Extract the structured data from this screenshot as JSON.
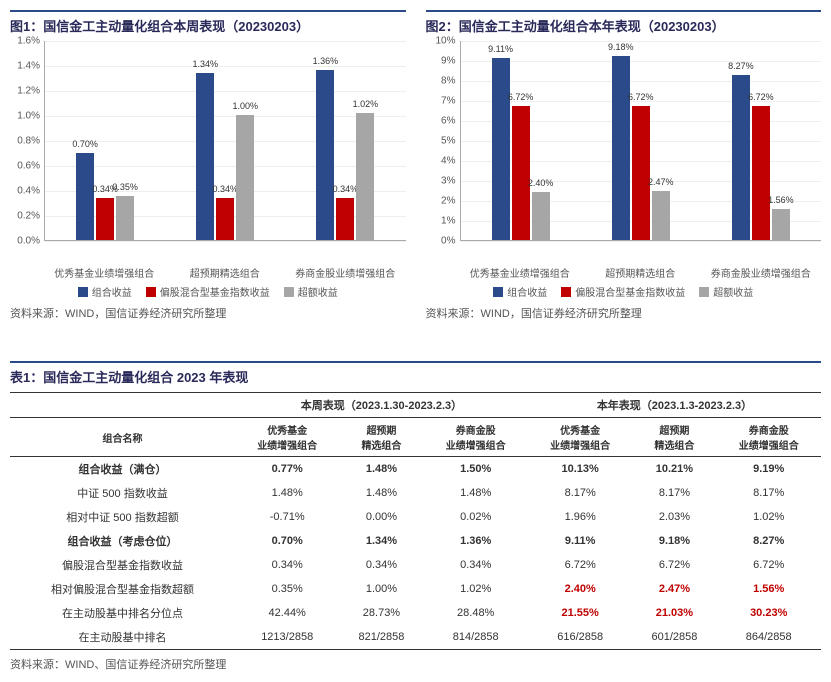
{
  "chart1": {
    "title": "图1：国信金工主动量化组合本周表现（20230203）",
    "type": "bar",
    "ylim": [
      0,
      1.6
    ],
    "ytick_step": 0.2,
    "y_suffix": "%",
    "categories": [
      "优秀基金业绩增强组合",
      "超预期精选组合",
      "券商金股业绩增强组合"
    ],
    "series": [
      {
        "name": "组合收益",
        "color": "#2a4a8a",
        "values": [
          0.7,
          1.34,
          1.36
        ],
        "labels": [
          "0.70%",
          "1.34%",
          "1.36%"
        ]
      },
      {
        "name": "偏股混合型基金指数收益",
        "color": "#c00000",
        "values": [
          0.34,
          0.34,
          0.34
        ],
        "labels": [
          "0.34%",
          "0.34%",
          "0.34%"
        ]
      },
      {
        "name": "超额收益",
        "color": "#a6a6a6",
        "values": [
          0.35,
          1.0,
          1.02
        ],
        "labels": [
          "0.35%",
          "1.00%",
          "1.02%"
        ]
      }
    ],
    "source": "资料来源：WIND，国信证券经济研究所整理"
  },
  "chart2": {
    "title": "图2：国信金工主动量化组合本年表现（20230203）",
    "type": "bar",
    "ylim": [
      0,
      10
    ],
    "ytick_step": 1,
    "y_suffix": "%",
    "categories": [
      "优秀基金业绩增强组合",
      "超预期精选组合",
      "券商金股业绩增强组合"
    ],
    "series": [
      {
        "name": "组合收益",
        "color": "#2a4a8a",
        "values": [
          9.11,
          9.18,
          8.27
        ],
        "labels": [
          "9.11%",
          "9.18%",
          "8.27%"
        ]
      },
      {
        "name": "偏股混合型基金指数收益",
        "color": "#c00000",
        "values": [
          6.72,
          6.72,
          6.72
        ],
        "labels": [
          "6.72%",
          "6.72%",
          "6.72%"
        ]
      },
      {
        "name": "超额收益",
        "color": "#a6a6a6",
        "values": [
          2.4,
          2.47,
          1.56
        ],
        "labels": [
          "2.40%",
          "2.47%",
          "1.56%"
        ]
      }
    ],
    "source": "资料来源：WIND，国信证券经济研究所整理"
  },
  "table": {
    "title": "表1：国信金工主动量化组合 2023 年表现",
    "header_group1": "本周表现（2023.1.30-2023.2.3）",
    "header_group2": "本年表现（2023.1.3-2023.2.3）",
    "col_name": "组合名称",
    "cols": [
      "优秀基金\n业绩增强组合",
      "超预期\n精选组合",
      "券商金股\n业绩增强组合",
      "优秀基金\n业绩增强组合",
      "超预期\n精选组合",
      "券商金股\n业绩增强组合"
    ],
    "rows": [
      {
        "label": "组合收益（满仓）",
        "bold": true,
        "cells": [
          "0.77%",
          "1.48%",
          "1.50%",
          "10.13%",
          "10.21%",
          "9.19%"
        ]
      },
      {
        "label": "中证 500 指数收益",
        "cells": [
          "1.48%",
          "1.48%",
          "1.48%",
          "8.17%",
          "8.17%",
          "8.17%"
        ]
      },
      {
        "label": "相对中证 500 指数超额",
        "cells": [
          "-0.71%",
          "0.00%",
          "0.02%",
          "1.96%",
          "2.03%",
          "1.02%"
        ]
      },
      {
        "label": "组合收益（考虑仓位）",
        "bold": true,
        "cells": [
          "0.70%",
          "1.34%",
          "1.36%",
          "9.11%",
          "9.18%",
          "8.27%"
        ]
      },
      {
        "label": "偏股混合型基金指数收益",
        "cells": [
          "0.34%",
          "0.34%",
          "0.34%",
          "6.72%",
          "6.72%",
          "6.72%"
        ]
      },
      {
        "label": "相对偏股混合型基金指数超额",
        "cells": [
          "0.35%",
          "1.00%",
          "1.02%",
          "2.40%",
          "2.47%",
          "1.56%"
        ],
        "red_cols": [
          3,
          4,
          5
        ]
      },
      {
        "label": "在主动股基中排名分位点",
        "cells": [
          "42.44%",
          "28.73%",
          "28.48%",
          "21.55%",
          "21.03%",
          "30.23%"
        ],
        "red_cols": [
          3,
          4,
          5
        ]
      },
      {
        "label": "在主动股基中排名",
        "cells": [
          "1213/2858",
          "821/2858",
          "814/2858",
          "616/2858",
          "601/2858",
          "864/2858"
        ]
      }
    ],
    "source": "资料来源：WIND、国信证券经济研究所整理"
  }
}
